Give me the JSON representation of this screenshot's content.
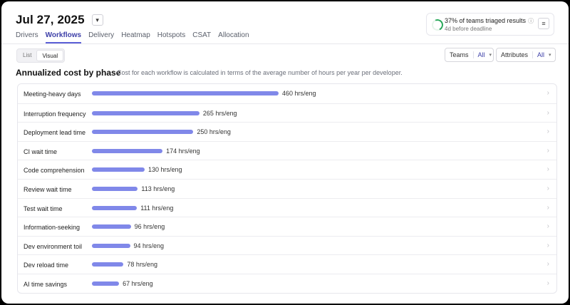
{
  "header": {
    "date": "Jul 27, 2025",
    "date_picker_icon": "chevron-down-icon"
  },
  "tabs": [
    {
      "label": "Drivers",
      "active": false
    },
    {
      "label": "Workflows",
      "active": true
    },
    {
      "label": "Delivery",
      "active": false
    },
    {
      "label": "Heatmap",
      "active": false
    },
    {
      "label": "Hotspots",
      "active": false
    },
    {
      "label": "CSAT",
      "active": false
    },
    {
      "label": "Allocation",
      "active": false
    }
  ],
  "triage": {
    "text": "37% of teams triaged results",
    "sub": "4d before deadline",
    "percent": 37,
    "menu_icon": "menu-icon"
  },
  "view_toggle": {
    "list_label": "List",
    "visual_label": "Visual",
    "selected": "Visual"
  },
  "filters": {
    "teams_label": "Teams",
    "teams_value": "All",
    "attributes_label": "Attributes",
    "attributes_value": "All"
  },
  "section": {
    "title": "Annualized cost by phase",
    "description": "Cost for each workflow is calculated in terms of the average number of hours per year per developer."
  },
  "colors": {
    "bar": "#8088e9",
    "accent": "#3d3fa8",
    "progress": "#29a85a"
  },
  "chart_data": {
    "type": "bar",
    "unit": "hrs/eng",
    "categories": [
      "Meeting-heavy days",
      "Interruption frequency",
      "Deployment lead time",
      "CI wait time",
      "Code comprehension",
      "Review wait time",
      "Test wait time",
      "Information-seeking",
      "Dev environment toil",
      "Dev reload time",
      "AI time savings"
    ],
    "values": [
      460,
      265,
      250,
      174,
      130,
      113,
      111,
      96,
      94,
      78,
      67
    ],
    "value_labels": [
      "460 hrs/eng",
      "265 hrs/eng",
      "250 hrs/eng",
      "174 hrs/eng",
      "130 hrs/eng",
      "113 hrs/eng",
      "111 hrs/eng",
      "96 hrs/eng",
      "94 hrs/eng",
      "78 hrs/eng",
      "67 hrs/eng"
    ]
  }
}
